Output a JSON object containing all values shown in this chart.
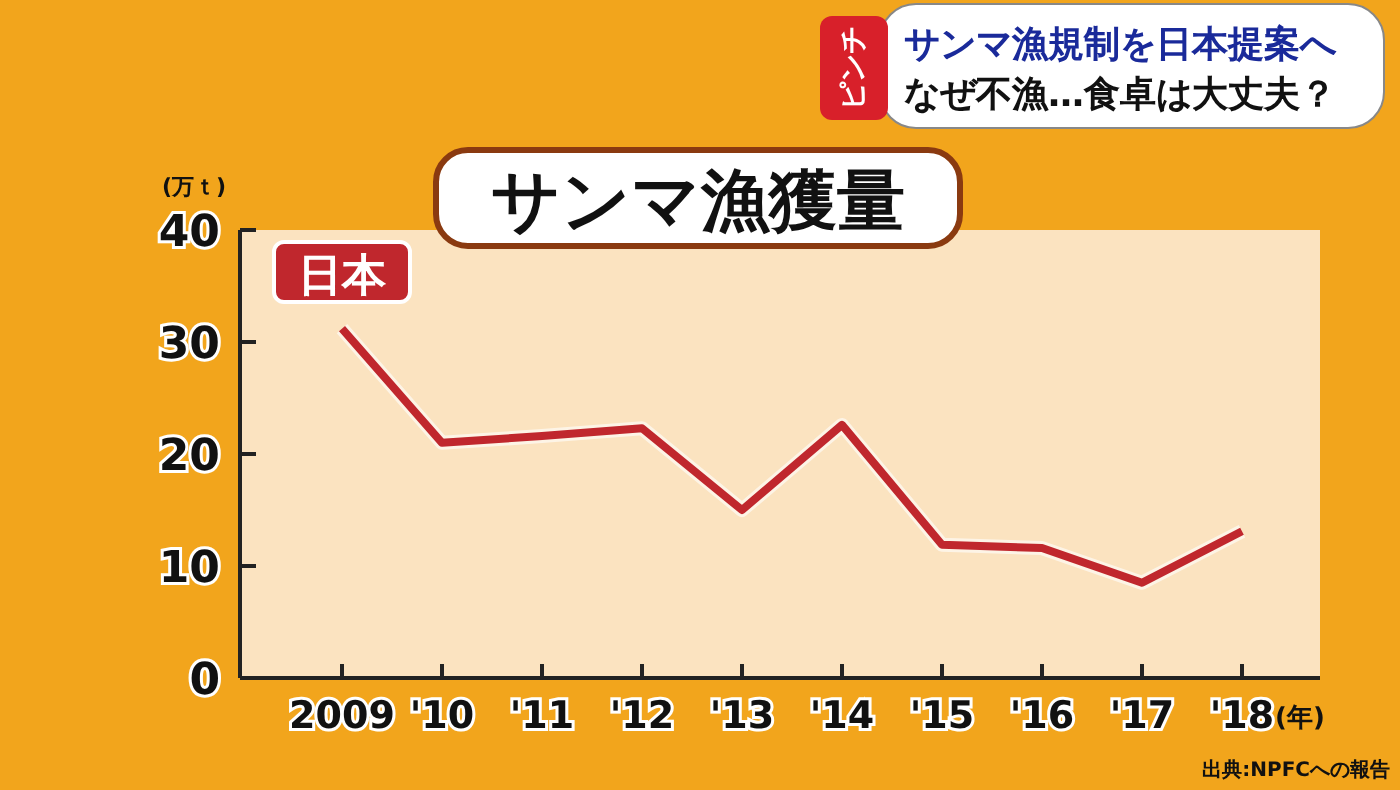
{
  "chart_data": {
    "type": "line",
    "title": "サンマ漁獲量",
    "ylabel": "(万ｔ)",
    "xlabel": "(年)",
    "categories": [
      "2009",
      "'10",
      "'11",
      "'12",
      "'13",
      "'14",
      "'15",
      "'16",
      "'17",
      "'18"
    ],
    "series": [
      {
        "name": "日本",
        "color": "#c0272d",
        "values": [
          31.2,
          21.0,
          21.6,
          22.3,
          15.0,
          22.6,
          11.9,
          11.6,
          8.5,
          13.1
        ]
      }
    ],
    "ylim": [
      0,
      40
    ],
    "yticks": [
      0,
      10,
      20,
      30,
      40
    ],
    "grid": false,
    "marker": "none",
    "line_style": "solid",
    "annotations": [
      "ピンチ",
      "サンマ漁規制を日本提案へ",
      "なぜ不漁…食卓は大丈夫？",
      "出典:NPFCへの報告"
    ]
  }
}
